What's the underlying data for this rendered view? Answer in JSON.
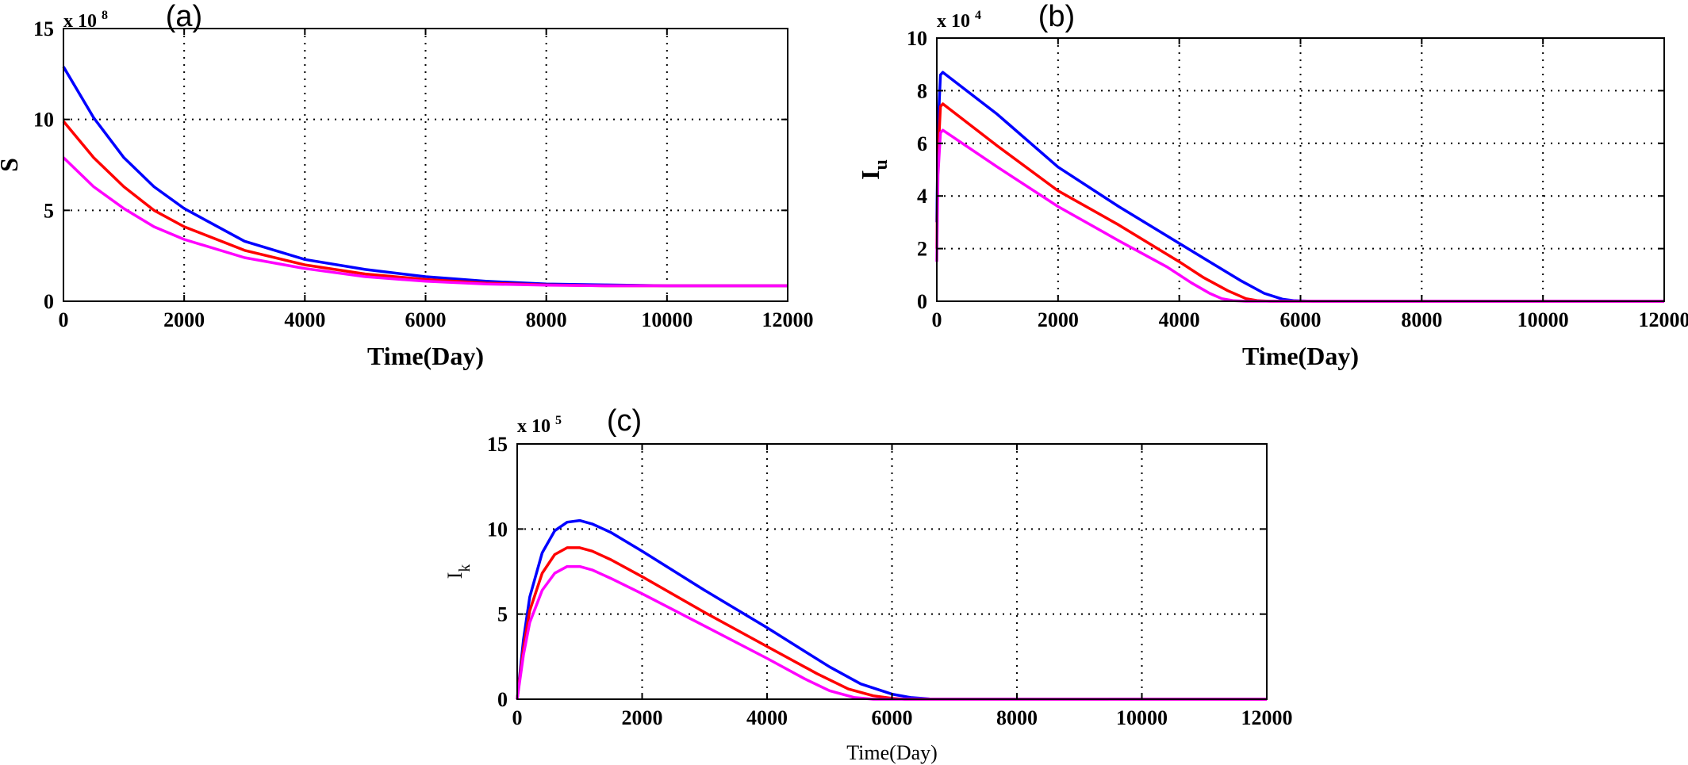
{
  "chart_data": [
    {
      "type": "line",
      "panel_label": "(a)",
      "ylabel": "S",
      "xlabel": "Time(Day)",
      "y_multiplier": "x 10",
      "y_multiplier_exp": "8",
      "xlim": [
        0,
        12000
      ],
      "ylim": [
        0,
        15
      ],
      "xticks": [
        0,
        2000,
        4000,
        6000,
        8000,
        10000,
        12000
      ],
      "yticks": [
        0,
        5,
        10,
        15
      ],
      "grid": true,
      "series": [
        {
          "color": "#0000ff",
          "x": [
            0,
            500,
            1000,
            1500,
            2000,
            3000,
            4000,
            5000,
            6000,
            7000,
            8000,
            9000,
            10000,
            11000,
            12000
          ],
          "y": [
            12.9,
            10.1,
            7.9,
            6.3,
            5.1,
            3.3,
            2.3,
            1.75,
            1.35,
            1.1,
            0.95,
            0.9,
            0.85,
            0.85,
            0.85
          ]
        },
        {
          "color": "#ff0000",
          "x": [
            0,
            500,
            1000,
            1500,
            2000,
            3000,
            4000,
            5000,
            6000,
            7000,
            8000,
            9000,
            10000,
            11000,
            12000
          ],
          "y": [
            9.9,
            7.9,
            6.3,
            5.0,
            4.1,
            2.8,
            2.0,
            1.5,
            1.2,
            1.0,
            0.9,
            0.85,
            0.85,
            0.85,
            0.85
          ]
        },
        {
          "color": "#ff00ff",
          "x": [
            0,
            500,
            1000,
            1500,
            2000,
            3000,
            4000,
            5000,
            6000,
            7000,
            8000,
            9000,
            10000,
            11000,
            12000
          ],
          "y": [
            7.9,
            6.3,
            5.1,
            4.1,
            3.4,
            2.4,
            1.8,
            1.35,
            1.1,
            0.95,
            0.88,
            0.85,
            0.85,
            0.85,
            0.85
          ]
        }
      ]
    },
    {
      "type": "line",
      "panel_label": "(b)",
      "ylabel": "I",
      "ylabel_sub": "u",
      "xlabel": "Time(Day)",
      "y_multiplier": "x 10",
      "y_multiplier_exp": "4",
      "xlim": [
        0,
        12000
      ],
      "ylim": [
        0,
        10
      ],
      "xticks": [
        0,
        2000,
        4000,
        6000,
        8000,
        10000,
        12000
      ],
      "yticks": [
        0,
        2,
        4,
        6,
        8,
        10
      ],
      "grid": true,
      "series": [
        {
          "color": "#0000ff",
          "x": [
            0,
            20,
            60,
            100,
            1000,
            2000,
            3000,
            4000,
            4500,
            5000,
            5400,
            5700,
            5900,
            6200,
            12000
          ],
          "y": [
            3.0,
            6.5,
            8.6,
            8.7,
            7.1,
            5.1,
            3.6,
            2.2,
            1.5,
            0.8,
            0.3,
            0.08,
            0.02,
            0.0,
            0.0
          ]
        },
        {
          "color": "#ff0000",
          "x": [
            0,
            20,
            60,
            100,
            1000,
            2000,
            3000,
            4000,
            4400,
            4800,
            5100,
            5300,
            5500,
            12000
          ],
          "y": [
            2.0,
            5.5,
            7.4,
            7.5,
            5.9,
            4.2,
            2.9,
            1.5,
            0.9,
            0.4,
            0.1,
            0.02,
            0.0,
            0.0
          ]
        },
        {
          "color": "#ff00ff",
          "x": [
            0,
            20,
            60,
            100,
            1000,
            2000,
            3000,
            3800,
            4200,
            4500,
            4700,
            4900,
            5100,
            12000
          ],
          "y": [
            1.5,
            4.8,
            6.4,
            6.5,
            5.1,
            3.6,
            2.3,
            1.3,
            0.7,
            0.3,
            0.1,
            0.02,
            0.0,
            0.0
          ]
        }
      ]
    },
    {
      "type": "line",
      "panel_label": "(c)",
      "ylabel": "I",
      "ylabel_sub": "k",
      "xlabel": "Time(Day)",
      "y_multiplier": "x 10",
      "y_multiplier_exp": "5",
      "xlim": [
        0,
        12000
      ],
      "ylim": [
        0,
        15
      ],
      "xticks": [
        0,
        2000,
        4000,
        6000,
        8000,
        10000,
        12000
      ],
      "yticks": [
        0,
        5,
        10,
        15
      ],
      "grid": true,
      "series": [
        {
          "color": "#0000ff",
          "x": [
            0,
            100,
            200,
            400,
            600,
            800,
            1000,
            1200,
            1500,
            2000,
            3000,
            4000,
            5000,
            5500,
            6000,
            6300,
            6600,
            12000
          ],
          "y": [
            0,
            3.5,
            6.0,
            8.6,
            9.9,
            10.4,
            10.5,
            10.3,
            9.8,
            8.7,
            6.4,
            4.2,
            1.9,
            0.9,
            0.3,
            0.1,
            0.02,
            0.0
          ]
        },
        {
          "color": "#ff0000",
          "x": [
            0,
            100,
            200,
            400,
            600,
            800,
            1000,
            1200,
            1500,
            2000,
            3000,
            4000,
            4800,
            5300,
            5700,
            6000,
            6200,
            12000
          ],
          "y": [
            0,
            3.0,
            5.2,
            7.4,
            8.5,
            8.9,
            8.9,
            8.7,
            8.2,
            7.2,
            5.1,
            3.1,
            1.5,
            0.6,
            0.2,
            0.05,
            0.0,
            0.0
          ]
        },
        {
          "color": "#ff00ff",
          "x": [
            0,
            100,
            200,
            400,
            600,
            800,
            1000,
            1200,
            1500,
            2000,
            3000,
            4000,
            4600,
            5000,
            5400,
            5700,
            12000
          ],
          "y": [
            0,
            2.6,
            4.5,
            6.4,
            7.4,
            7.8,
            7.8,
            7.6,
            7.1,
            6.2,
            4.3,
            2.4,
            1.2,
            0.5,
            0.1,
            0.0,
            0.0
          ]
        }
      ]
    }
  ]
}
